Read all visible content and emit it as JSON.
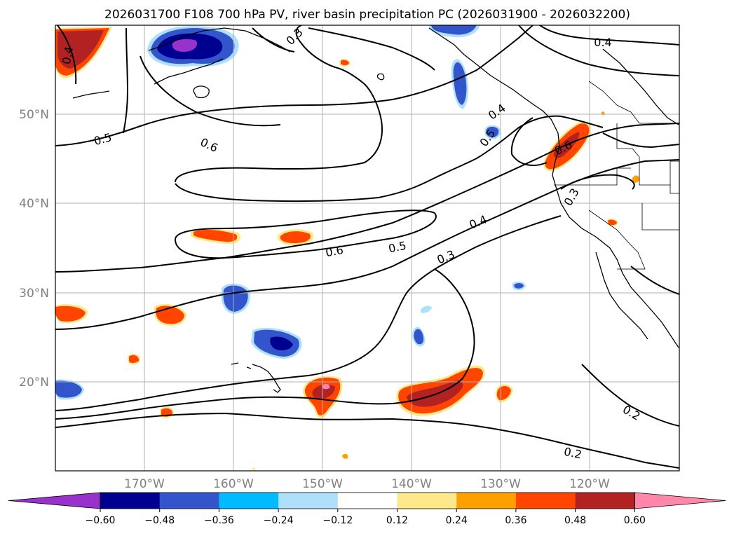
{
  "title": "2026031700 F108 700 hPa PV, river basin precipitation PC (2026031900 - 2026032200)",
  "map": {
    "lon_range": [
      -180,
      -110
    ],
    "lat_range": [
      10,
      60
    ],
    "lat_labels": [
      "50°N",
      "40°N",
      "30°N",
      "20°N"
    ],
    "lon_labels": [
      "170°W",
      "160°W",
      "150°W",
      "140°W",
      "130°W",
      "120°W"
    ],
    "gridlines": true
  },
  "contours": {
    "variable": "700 hPa PV",
    "labels": [
      "0.4",
      "0.3",
      "0.5",
      "0.6",
      "0.4",
      "0.5",
      "0.6",
      "0.3",
      "0.6",
      "0.5",
      "0.4",
      "0.3",
      "0.2",
      "0.2",
      "0.4"
    ]
  },
  "colorbar": {
    "tick_labels": [
      "−0.60",
      "−0.48",
      "−0.36",
      "−0.24",
      "−0.12",
      "0.12",
      "0.24",
      "0.36",
      "0.48",
      "0.60"
    ],
    "under_color": "#9932cc",
    "over_color": "#ff88aa",
    "colors": [
      "#000090",
      "#3355cc",
      "#00bbff",
      "#aee0fa",
      "#ffffff",
      "#ffe88a",
      "#ffa000",
      "#ff4500",
      "#b22222"
    ]
  }
}
